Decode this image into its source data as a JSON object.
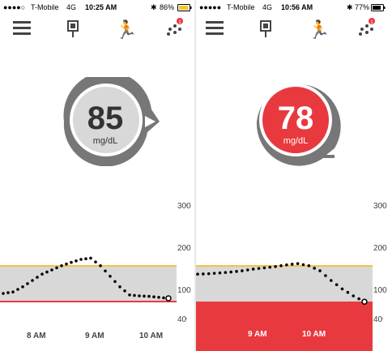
{
  "left": {
    "status": {
      "signal": "●●●●○",
      "carrier": "T-Mobile",
      "network": "4G",
      "time": "10:25 AM",
      "battery": "86%"
    },
    "glucose": {
      "value": "85",
      "unit": "mg/dL",
      "color": "#cfcfcf"
    },
    "x_labels": [
      "8 AM",
      "9 AM",
      "10 AM"
    ]
  },
  "right": {
    "status": {
      "signal": "●●●●●",
      "carrier": "T-Mobile",
      "network": "4G",
      "time": "10:56 AM",
      "battery": "77%"
    },
    "glucose": {
      "value": "78",
      "unit": "mg/dL",
      "color": "#e8393f"
    },
    "x_labels": [
      "9 AM",
      "10 AM"
    ]
  },
  "y_axis": {
    "ticks": [
      "300",
      "200",
      "100",
      "40"
    ]
  },
  "nav": {
    "menu": "menu-icon",
    "sensor": "sensor-icon",
    "activity": "activity-icon",
    "share": "share-icon",
    "badge": "1"
  },
  "chart_data": [
    {
      "type": "scatter",
      "x": [
        "7:40",
        "7:50",
        "8:00",
        "8:10",
        "8:20",
        "8:30",
        "8:40",
        "8:50",
        "9:00",
        "9:10",
        "9:20",
        "9:30",
        "9:40",
        "9:50",
        "10:00",
        "10:10",
        "10:20",
        "10:25"
      ],
      "values": [
        95,
        98,
        110,
        125,
        140,
        150,
        160,
        168,
        175,
        178,
        160,
        135,
        110,
        92,
        90,
        89,
        87,
        85
      ],
      "yticks": [
        300,
        200,
        100,
        40
      ],
      "high_line": 180,
      "low_line": 80
    },
    {
      "type": "scatter",
      "x": [
        "8:30",
        "8:40",
        "8:50",
        "9:00",
        "9:10",
        "9:20",
        "9:30",
        "9:40",
        "9:50",
        "10:00",
        "10:10",
        "10:20",
        "10:30",
        "10:40",
        "10:50",
        "10:56"
      ],
      "values": [
        140,
        141,
        143,
        145,
        148,
        152,
        155,
        158,
        162,
        165,
        160,
        148,
        125,
        105,
        90,
        78
      ],
      "yticks": [
        300,
        200,
        100,
        40
      ],
      "high_line": 180,
      "low_line": 80
    }
  ]
}
